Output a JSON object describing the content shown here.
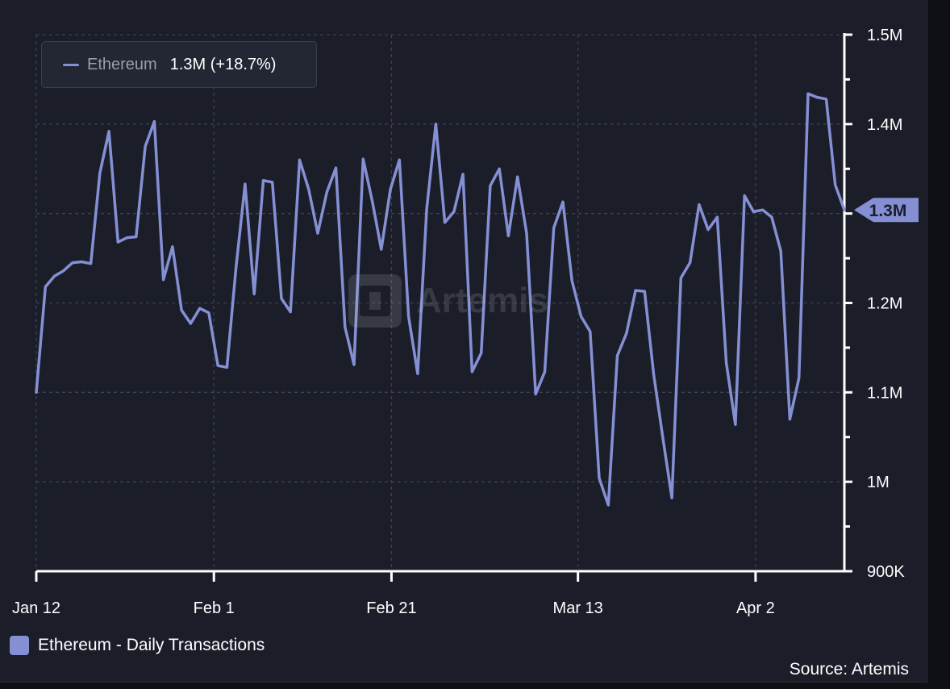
{
  "colors": {
    "series": "#8590d4",
    "background": "#1b1d29",
    "grid": "#3d4050",
    "axis": "#ffffff"
  },
  "tooltip": {
    "series_name": "Ethereum",
    "value_text": "1.3M (+18.7%)"
  },
  "watermark": {
    "text": "Artemis",
    "icon": "artemis-logo-icon"
  },
  "legend": {
    "label": "Ethereum - Daily Transactions"
  },
  "source": "Source: Artemis",
  "chart_data": {
    "type": "line",
    "title": "",
    "xlabel": "",
    "ylabel": "",
    "x_start": "2024-01-12",
    "x_end": "2024-04-12",
    "x_tick_labels": [
      "Jan 12",
      "Feb 1",
      "Feb 21",
      "Mar 13",
      "Apr 2"
    ],
    "x_tick_dates": [
      "2024-01-12",
      "2024-02-01",
      "2024-02-21",
      "2024-03-13",
      "2024-04-02"
    ],
    "y_ticks": [
      900000,
      1000000,
      1100000,
      1200000,
      1300000,
      1400000,
      1500000
    ],
    "y_tick_labels": [
      "900K",
      "1M",
      "1.1M",
      "1.2M",
      "1.3M",
      "1.4M",
      "1.5M"
    ],
    "ylim": [
      900000,
      1500000
    ],
    "grid": true,
    "last_value_label": "1.3M",
    "series": [
      {
        "name": "Ethereum",
        "values": [
          1100000,
          1218000,
          1230000,
          1236000,
          1245000,
          1246000,
          1244000,
          1345000,
          1392000,
          1268000,
          1273000,
          1274000,
          1375000,
          1403000,
          1226000,
          1263000,
          1192000,
          1177000,
          1194000,
          1189000,
          1130000,
          1128000,
          1240000,
          1333000,
          1210000,
          1337000,
          1335000,
          1205000,
          1190000,
          1360000,
          1327000,
          1278000,
          1324000,
          1351000,
          1173000,
          1131000,
          1361000,
          1314000,
          1260000,
          1327000,
          1360000,
          1185000,
          1121000,
          1305000,
          1400000,
          1290000,
          1302000,
          1344000,
          1123000,
          1144000,
          1331000,
          1350000,
          1275000,
          1341000,
          1278000,
          1098000,
          1123000,
          1284000,
          1313000,
          1225000,
          1185000,
          1168000,
          1004000,
          974000,
          1141000,
          1166000,
          1214000,
          1213000,
          1120000,
          1050000,
          982000,
          1228000,
          1245000,
          1310000,
          1282000,
          1296000,
          1133000,
          1064000,
          1320000,
          1302000,
          1304000,
          1296000,
          1258000,
          1070000,
          1116000,
          1434000,
          1430000,
          1428000,
          1332000,
          1304000
        ]
      }
    ]
  }
}
